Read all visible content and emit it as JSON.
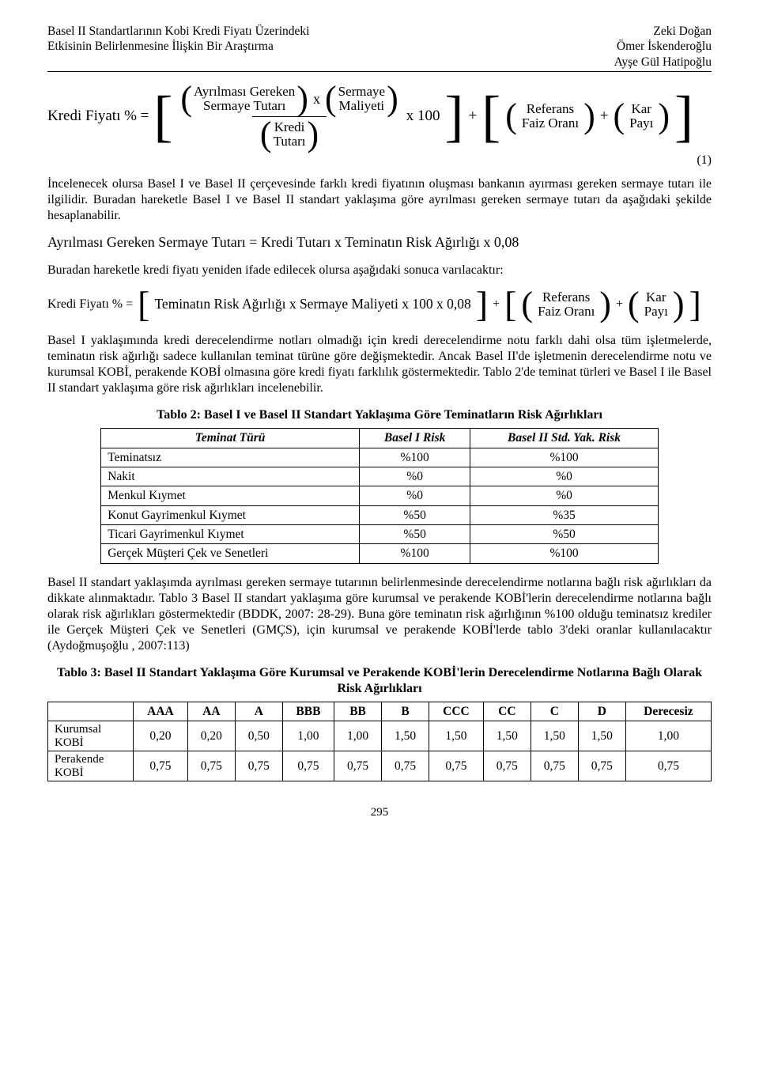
{
  "header": {
    "left": "Basel II Standartlarının Kobi Kredi Fiyatı Üzerindeki\nEtkisinin Belirlenmesine İlişkin Bir Araştırma",
    "right": "Zeki Doğan\nÖmer İskenderoğlu\nAyşe Gül Hatipoğlu"
  },
  "eq1": {
    "lhs": "Kredi Fiyatı % =",
    "num_a1": "Ayrılması Gereken",
    "num_a2": "Sermaye Tutarı",
    "num_b1": "Sermaye",
    "num_b2": "Maliyeti",
    "den1": "Kredi",
    "den2": "Tutarı",
    "times100": "x 100",
    "plus": "+",
    "ref1": "Referans",
    "ref2": "Faiz Oranı",
    "kar1": "Kar",
    "kar2": "Payı",
    "eqnum": "(1)"
  },
  "p1": "İncelenecek olursa Basel I ve Basel II çerçevesinde farklı kredi fiyatının oluşması bankanın ayırması gereken sermaye tutarı ile ilgilidir. Buradan hareketle Basel I ve Basel II standart yaklaşıma göre ayrılması gereken sermaye tutarı da aşağıdaki şekilde hesaplanabilir.",
  "eq_inline": "Ayrılması Gereken Sermaye Tutarı = Kredi Tutarı x Teminatın Risk Ağırlığı x 0,08",
  "p2": "Buradan hareketle kredi fiyatı yeniden ifade edilecek olursa aşağıdaki sonuca varılacaktır:",
  "eq2": {
    "lhs": "Kredi Fiyatı % =",
    "mid": "Teminatın Risk Ağırlığı x Sermaye Maliyeti x 100 x 0,08",
    "plus": "+",
    "ref1": "Referans",
    "ref2": "Faiz Oranı",
    "kar1": "Kar",
    "kar2": "Payı"
  },
  "p3": "Basel I yaklaşımında kredi derecelendirme notları olmadığı için kredi derecelendirme notu farklı dahi olsa tüm işletmelerde, teminatın risk ağırlığı sadece kullanılan teminat türüne göre değişmektedir. Ancak Basel II'de işletmenin derecelendirme notu ve kurumsal KOBİ, perakende KOBİ olmasına göre kredi fiyatı farklılık göstermektedir. Tablo 2'de teminat türleri ve Basel I ile Basel II standart yaklaşıma göre risk ağırlıkları incelenebilir.",
  "table2": {
    "caption": "Tablo 2: Basel I ve Basel II Standart Yaklaşıma Göre Teminatların Risk Ağırlıkları",
    "columns": [
      "Teminat Türü",
      "Basel I Risk",
      "Basel II Std. Yak. Risk"
    ],
    "rows": [
      [
        "Teminatsız",
        "%100",
        "%100"
      ],
      [
        "Nakit",
        "%0",
        "%0"
      ],
      [
        "Menkul Kıymet",
        "%0",
        "%0"
      ],
      [
        "Konut Gayrimenkul Kıymet",
        "%50",
        "%35"
      ],
      [
        "Ticari Gayrimenkul Kıymet",
        "%50",
        "%50"
      ],
      [
        "Gerçek Müşteri Çek ve Senetleri",
        "%100",
        "%100"
      ]
    ]
  },
  "p4": "Basel II standart yaklaşımda ayrılması gereken sermaye tutarının belirlenmesinde derecelendirme notlarına bağlı risk ağırlıkları da dikkate alınmaktadır. Tablo 3 Basel II standart yaklaşıma göre kurumsal ve perakende KOBİ'lerin derecelendirme notlarına bağlı olarak risk ağırlıkları göstermektedir (BDDK, 2007: 28-29). Buna göre teminatın risk ağırlığının %100 olduğu teminatsız krediler ile Gerçek Müşteri Çek ve Senetleri (GMÇS), için kurumsal ve perakende KOBİ'lerde tablo 3'deki oranlar kullanılacaktır (Aydoğmuşoğlu , 2007:113)",
  "table3": {
    "caption": "Tablo 3: Basel II Standart Yaklaşıma Göre Kurumsal ve Perakende KOBİ'lerin Derecelendirme Notlarına Bağlı Olarak Risk Ağırlıkları",
    "columns": [
      "",
      "AAA",
      "AA",
      "A",
      "BBB",
      "BB",
      "B",
      "CCC",
      "CC",
      "C",
      "D",
      "Derecesiz"
    ],
    "rows": [
      [
        "Kurumsal KOBİ",
        "0,20",
        "0,20",
        "0,50",
        "1,00",
        "1,00",
        "1,50",
        "1,50",
        "1,50",
        "1,50",
        "1,50",
        "1,00"
      ],
      [
        "Perakende KOBİ",
        "0,75",
        "0,75",
        "0,75",
        "0,75",
        "0,75",
        "0,75",
        "0,75",
        "0,75",
        "0,75",
        "0,75",
        "0,75"
      ]
    ]
  },
  "page_number": "295"
}
